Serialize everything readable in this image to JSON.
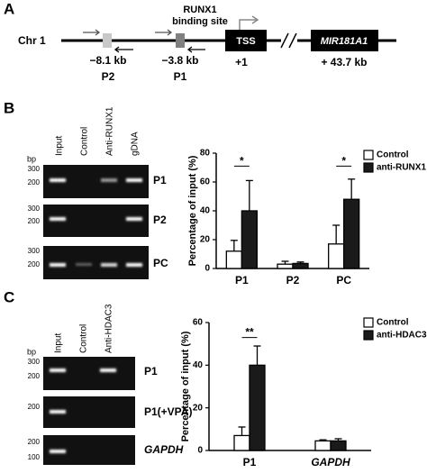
{
  "panel_a": {
    "panel": "A",
    "chromosome": "Chr 1",
    "site_label": [
      "RUNX1",
      "binding site"
    ],
    "tss": "TSS",
    "gene": "MIR181A1",
    "positions": [
      {
        "distance": "−8.1 kb",
        "primer": "P2"
      },
      {
        "distance": "−3.8 kb",
        "primer": "P1"
      },
      {
        "distance": "+1"
      },
      {
        "distance": "+ 43.7 kb"
      }
    ]
  },
  "panel_b": {
    "panel": "B",
    "bp": "bp",
    "lanes": [
      "Input",
      "Control",
      "Anti-RUNX1",
      "gDNA"
    ],
    "gels": [
      {
        "label": "P1",
        "markers": [
          "300",
          "200"
        ]
      },
      {
        "label": "P2",
        "markers": [
          "300",
          "200"
        ]
      },
      {
        "label": "PC",
        "markers": [
          "300",
          "200"
        ]
      }
    ]
  },
  "panel_c": {
    "panel": "C",
    "bp": "bp",
    "lanes": [
      "Input",
      "Control",
      "Anti-HDAC3"
    ],
    "gels": [
      {
        "label": "P1",
        "markers": [
          "300",
          "200"
        ]
      },
      {
        "label": "P1(+VPA)",
        "markers": [
          "200"
        ]
      },
      {
        "label": "GAPDH",
        "markers": [
          "200",
          "100"
        ]
      }
    ]
  },
  "chart_data": [
    {
      "type": "bar",
      "y_label": "Percentage of input (%)",
      "categories": [
        "P1",
        "P2",
        "PC"
      ],
      "series": [
        {
          "name": "Control",
          "color": "#ffffff",
          "values": [
            12,
            3,
            17
          ],
          "errors": [
            7.5,
            2,
            13
          ]
        },
        {
          "name": "anti-RUNX1",
          "color": "#1a1a1a",
          "values": [
            40,
            3.5,
            48
          ],
          "errors": [
            21,
            1,
            14
          ]
        }
      ],
      "ylim": [
        0,
        80
      ],
      "yticks": [
        0,
        20,
        40,
        60,
        80
      ],
      "legend": "top-right",
      "annotations": [
        {
          "text": "*",
          "category": "P1",
          "y": 71
        },
        {
          "text": "*",
          "category": "PC",
          "y": 71
        }
      ]
    },
    {
      "type": "bar",
      "y_label": "Percentage of input (%)",
      "categories": [
        "P1",
        "GAPDH"
      ],
      "series": [
        {
          "name": "Control",
          "color": "#ffffff",
          "values": [
            7,
            4.5
          ],
          "errors": [
            4,
            0.5
          ]
        },
        {
          "name": "anti-HDAC3",
          "color": "#1a1a1a",
          "values": [
            40,
            4.5
          ],
          "errors": [
            9,
            1
          ]
        }
      ],
      "ylim": [
        0,
        60
      ],
      "yticks": [
        0,
        20,
        40,
        60
      ],
      "legend": "top-right",
      "annotations": [
        {
          "text": "**",
          "category": "P1",
          "y": 53
        }
      ]
    }
  ]
}
